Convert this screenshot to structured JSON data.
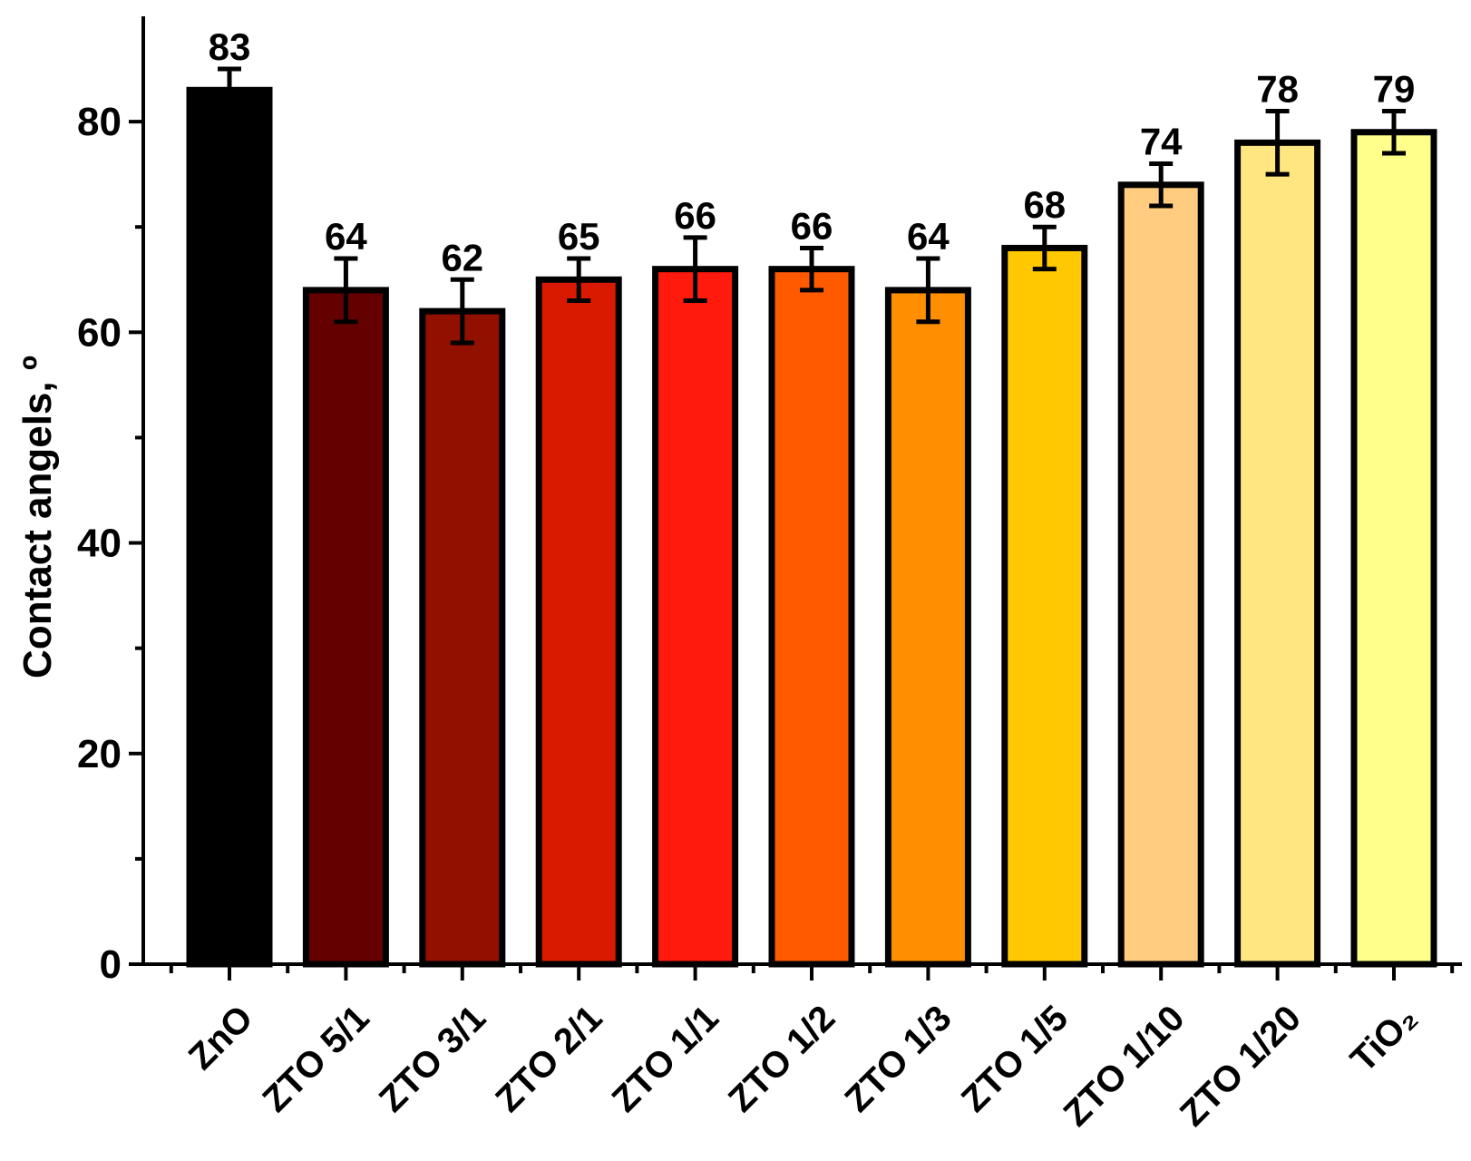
{
  "chart_data": {
    "type": "bar",
    "title": "",
    "xlabel": "",
    "ylabel": "Contact angels, º",
    "ylim": [
      0,
      90
    ],
    "yticks": [
      0,
      20,
      40,
      60,
      80
    ],
    "ytick_labels": [
      "0",
      "20",
      "40",
      "60",
      "80"
    ],
    "grid": false,
    "legend": "none",
    "categories": [
      "ZnO",
      "ZTO 5/1",
      "ZTO 3/1",
      "ZTO 2/1",
      "ZTO 1/1",
      "ZTO 1/2",
      "ZTO 1/3",
      "ZTO 1/5",
      "ZTO 1/10",
      "ZTO 1/20",
      "TiO₂"
    ],
    "values": [
      83,
      64,
      62,
      65,
      66,
      66,
      64,
      68,
      74,
      78,
      79
    ],
    "value_labels": [
      "83",
      "64",
      "62",
      "65",
      "66",
      "66",
      "64",
      "68",
      "74",
      "78",
      "79"
    ],
    "errors": [
      2,
      3,
      3,
      2,
      3,
      2,
      3,
      2,
      2,
      3,
      2
    ],
    "colors": [
      "#000000",
      "#650000",
      "#921000",
      "#d91a00",
      "#ff1a0d",
      "#ff5a00",
      "#ff8e00",
      "#ffc800",
      "#ffcc80",
      "#ffe680",
      "#ffff8a"
    ]
  }
}
